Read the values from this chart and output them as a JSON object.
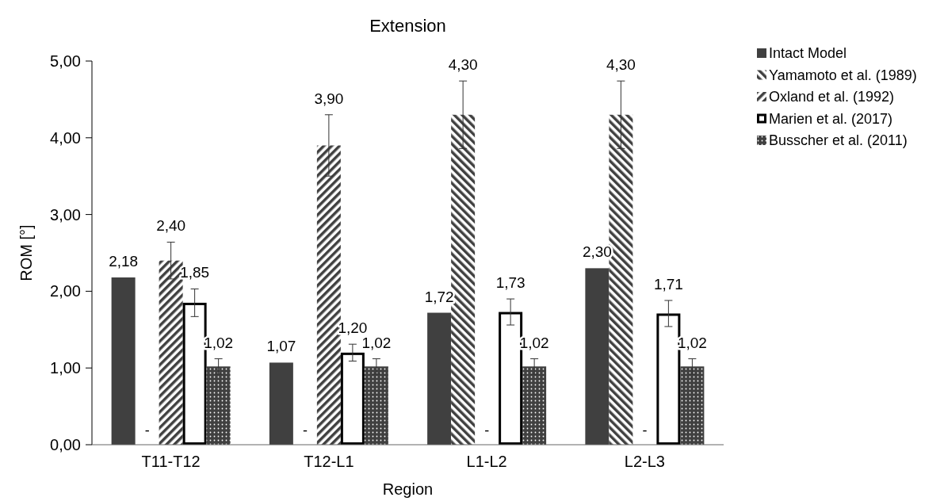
{
  "chart_data": {
    "type": "bar",
    "title": "Extension",
    "xlabel": "Region",
    "ylabel": "ROM [°]",
    "categories": [
      "T11-T12",
      "T12-L1",
      "L1-L2",
      "L2-L3"
    ],
    "ylim": [
      0,
      5
    ],
    "yticks": [
      {
        "value": 0,
        "label": "0,00"
      },
      {
        "value": 1,
        "label": "1,00"
      },
      {
        "value": 2,
        "label": "2,00"
      },
      {
        "value": 3,
        "label": "3,00"
      },
      {
        "value": 4,
        "label": "4,00"
      },
      {
        "value": 5,
        "label": "5,00"
      }
    ],
    "grid": false,
    "legend": "right",
    "series": [
      {
        "name": "Intact Model",
        "color": "#404040",
        "values": [
          2.18,
          1.07,
          1.72,
          2.3
        ],
        "value_labels": [
          "2,18",
          "1,07",
          "1,72",
          "2,30"
        ]
      },
      {
        "name": "Yamamoto et al. (1989)",
        "color": "#404040",
        "values": [
          null,
          null,
          4.3,
          4.3
        ],
        "errors": [
          null,
          null,
          0.44,
          0.44
        ],
        "value_labels": [
          "-",
          "-",
          "4,30",
          "4,30"
        ]
      },
      {
        "name": "Oxland et al. (1992)",
        "color": "#404040",
        "values": [
          2.4,
          3.9,
          null,
          null
        ],
        "errors": [
          0.24,
          0.4,
          null,
          null
        ],
        "value_labels": [
          "2,40",
          "3,90",
          "-",
          "-"
        ]
      },
      {
        "name": "Marien et al. (2017)",
        "color": "#ffffff",
        "values": [
          1.85,
          1.2,
          1.73,
          1.71
        ],
        "errors": [
          0.18,
          0.11,
          0.17,
          0.17
        ],
        "value_labels": [
          "1,85",
          "1,20",
          "1,73",
          "1,71"
        ]
      },
      {
        "name": "Busscher et al. (2011)",
        "color": "#404040",
        "values": [
          1.02,
          1.02,
          1.02,
          1.02
        ],
        "errors": [
          0.1,
          0.1,
          0.1,
          0.1
        ],
        "value_labels": [
          "1,02",
          "1,02",
          "1,02",
          "1,02"
        ]
      }
    ]
  }
}
